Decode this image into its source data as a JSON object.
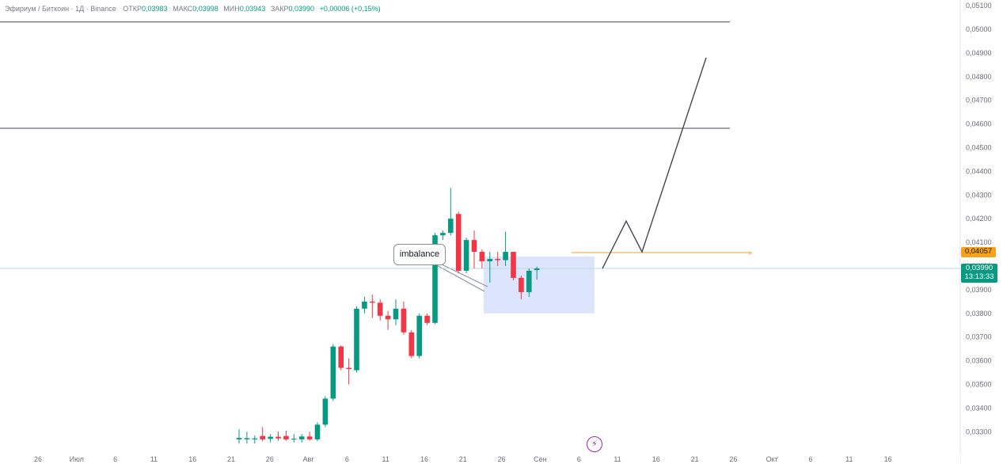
{
  "header": {
    "symbol": "Эфириум / Биткоин · 1Д · Binance",
    "open_label": "ОТКР",
    "open": "0,03983",
    "high_label": "МАКС",
    "high": "0,03998",
    "low_label": "МИН",
    "low": "0,03943",
    "close_label": "ЗАКР",
    "close": "0,03990",
    "change": "+0,00006 (+0,15%)"
  },
  "price_tags": {
    "level": "0,04057",
    "last_price": "0,03990",
    "countdown": "13:13:33"
  },
  "annotation": {
    "text": "imbalance"
  },
  "colors": {
    "up": "#089981",
    "down": "#f23645",
    "imbalance_zone": "#d6e0fb",
    "level_line": "#f7a21b",
    "price_line": "#b2dfdb",
    "hline": "#434651"
  },
  "chart_data": {
    "type": "candlestick",
    "y_axis_ticks": [
      "0,05100",
      "0,05000",
      "0,04900",
      "0,04800",
      "0,04700",
      "0,04600",
      "0,04500",
      "0,04400",
      "0,04300",
      "0,04200",
      "0,04100",
      "0,04000",
      "0,03900",
      "0,03800",
      "0,03700",
      "0,03600",
      "0,03500",
      "0,03400",
      "0,03300"
    ],
    "x_axis_ticks": [
      "26",
      "Июл",
      "6",
      "11",
      "16",
      "21",
      "26",
      "Авг",
      "6",
      "11",
      "16",
      "21",
      "26",
      "Сен",
      "6",
      "11",
      "16",
      "21",
      "26",
      "Окт",
      "6",
      "11",
      "16"
    ],
    "ylim": [
      0.0327,
      0.0512
    ],
    "candles": [
      {
        "o": 0.03268,
        "h": 0.0331,
        "l": 0.0325,
        "c": 0.03274
      },
      {
        "o": 0.03268,
        "h": 0.033,
        "l": 0.0325,
        "c": 0.03273
      },
      {
        "o": 0.03268,
        "h": 0.03285,
        "l": 0.0325,
        "c": 0.03272
      },
      {
        "o": 0.03282,
        "h": 0.0332,
        "l": 0.0326,
        "c": 0.03268
      },
      {
        "o": 0.0327,
        "h": 0.0329,
        "l": 0.03255,
        "c": 0.03279
      },
      {
        "o": 0.03279,
        "h": 0.033,
        "l": 0.03262,
        "c": 0.03272
      },
      {
        "o": 0.03282,
        "h": 0.03305,
        "l": 0.03262,
        "c": 0.03268
      },
      {
        "o": 0.03268,
        "h": 0.0329,
        "l": 0.03255,
        "c": 0.03271
      },
      {
        "o": 0.03268,
        "h": 0.0329,
        "l": 0.03255,
        "c": 0.0328
      },
      {
        "o": 0.0328,
        "h": 0.033,
        "l": 0.03262,
        "c": 0.03268
      },
      {
        "o": 0.03268,
        "h": 0.0334,
        "l": 0.0326,
        "c": 0.0333
      },
      {
        "o": 0.0333,
        "h": 0.0345,
        "l": 0.0332,
        "c": 0.0344
      },
      {
        "o": 0.0344,
        "h": 0.0367,
        "l": 0.0343,
        "c": 0.0366
      },
      {
        "o": 0.0366,
        "h": 0.03665,
        "l": 0.0356,
        "c": 0.0357
      },
      {
        "o": 0.0357,
        "h": 0.0361,
        "l": 0.035,
        "c": 0.03565
      },
      {
        "o": 0.0356,
        "h": 0.0383,
        "l": 0.0355,
        "c": 0.0382
      },
      {
        "o": 0.0382,
        "h": 0.0387,
        "l": 0.038,
        "c": 0.0385
      },
      {
        "o": 0.0385,
        "h": 0.0388,
        "l": 0.0378,
        "c": 0.03845
      },
      {
        "o": 0.03845,
        "h": 0.0386,
        "l": 0.0377,
        "c": 0.0379
      },
      {
        "o": 0.0379,
        "h": 0.0381,
        "l": 0.0373,
        "c": 0.03775
      },
      {
        "o": 0.03775,
        "h": 0.0386,
        "l": 0.0375,
        "c": 0.0382
      },
      {
        "o": 0.0382,
        "h": 0.0385,
        "l": 0.0371,
        "c": 0.0372
      },
      {
        "o": 0.0372,
        "h": 0.0373,
        "l": 0.0361,
        "c": 0.0362
      },
      {
        "o": 0.0362,
        "h": 0.038,
        "l": 0.0361,
        "c": 0.0379
      },
      {
        "o": 0.0379,
        "h": 0.038,
        "l": 0.0375,
        "c": 0.0376
      },
      {
        "o": 0.0376,
        "h": 0.0414,
        "l": 0.03755,
        "c": 0.0413
      },
      {
        "o": 0.0413,
        "h": 0.0415,
        "l": 0.0411,
        "c": 0.0414
      },
      {
        "o": 0.0414,
        "h": 0.0433,
        "l": 0.0413,
        "c": 0.042
      },
      {
        "o": 0.0422,
        "h": 0.0423,
        "l": 0.0397,
        "c": 0.0398
      },
      {
        "o": 0.0398,
        "h": 0.0412,
        "l": 0.0397,
        "c": 0.0411
      },
      {
        "o": 0.0411,
        "h": 0.0415,
        "l": 0.0399,
        "c": 0.0406
      },
      {
        "o": 0.0406,
        "h": 0.0407,
        "l": 0.0399,
        "c": 0.0402
      },
      {
        "o": 0.0402,
        "h": 0.0406,
        "l": 0.0393,
        "c": 0.0403
      },
      {
        "o": 0.0403,
        "h": 0.0406,
        "l": 0.04,
        "c": 0.04025
      },
      {
        "o": 0.04025,
        "h": 0.04145,
        "l": 0.04,
        "c": 0.0406
      },
      {
        "o": 0.0406,
        "h": 0.0406,
        "l": 0.0394,
        "c": 0.0395
      },
      {
        "o": 0.0395,
        "h": 0.0396,
        "l": 0.0386,
        "c": 0.0389
      },
      {
        "o": 0.0389,
        "h": 0.0399,
        "l": 0.0387,
        "c": 0.0398
      },
      {
        "o": 0.03983,
        "h": 0.03998,
        "l": 0.03943,
        "c": 0.0399
      }
    ],
    "horizontal_lines": [
      0.05031,
      0.04582
    ],
    "level_line": 0.04057,
    "last_price_line": 0.0399,
    "imbalance_zone": {
      "from_price": 0.038,
      "to_price": 0.0404
    },
    "projection_path": [
      0.0399,
      0.0419,
      0.0406,
      0.0488
    ]
  }
}
